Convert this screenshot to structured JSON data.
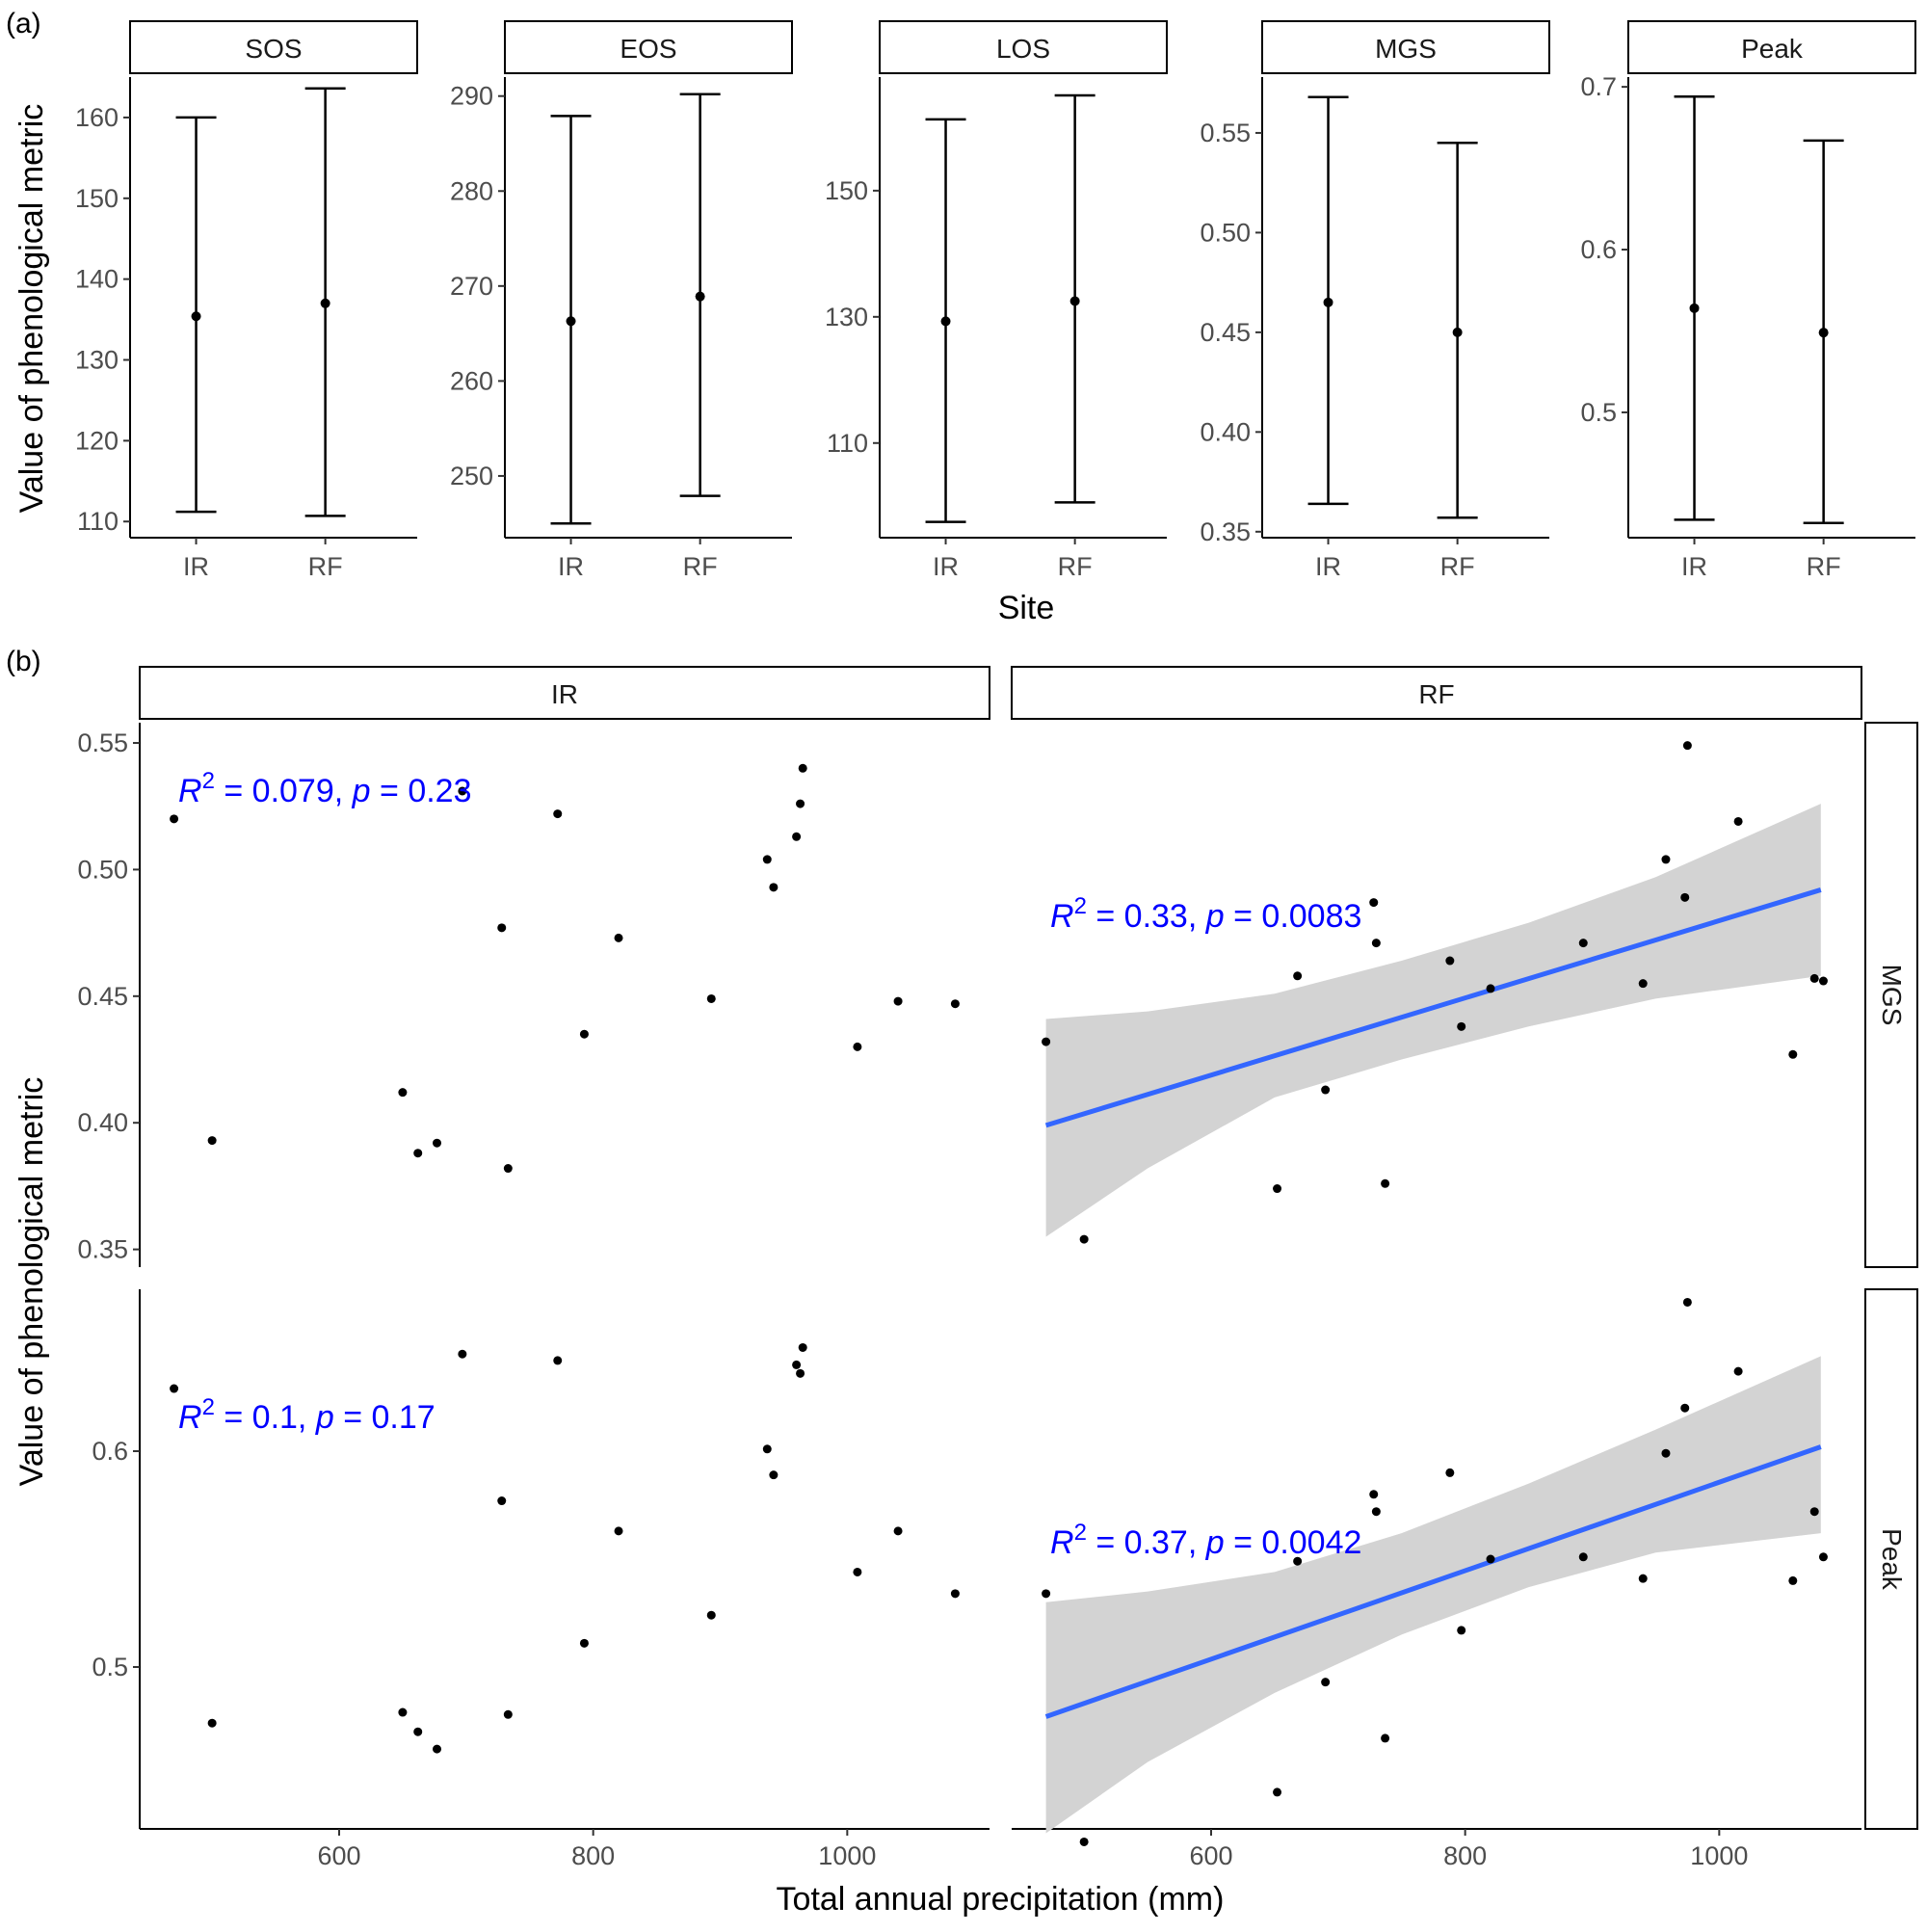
{
  "panel_labels": {
    "a": "(a)",
    "b": "(b)"
  },
  "chart_data": [
    {
      "type": "errorbar",
      "panel": "(a)",
      "ylabel": "Value of phenological metric",
      "xlabel": "Site",
      "categories": [
        "IR",
        "RF"
      ],
      "facets": [
        {
          "title": "SOS",
          "yticks": [
            "110",
            "120",
            "130",
            "140",
            "150",
            "160"
          ],
          "ylim": [
            108,
            165
          ],
          "points": [
            {
              "x": "IR",
              "mean": 135.4,
              "lower": 111.2,
              "upper": 160.0
            },
            {
              "x": "RF",
              "mean": 137.0,
              "lower": 110.7,
              "upper": 163.6
            }
          ]
        },
        {
          "title": "EOS",
          "yticks": [
            "250",
            "260",
            "270",
            "280",
            "290"
          ],
          "ylim": [
            243.5,
            292
          ],
          "points": [
            {
              "x": "IR",
              "mean": 266.3,
              "lower": 245.0,
              "upper": 287.9
            },
            {
              "x": "RF",
              "mean": 268.9,
              "lower": 247.9,
              "upper": 290.2
            }
          ]
        },
        {
          "title": "LOS",
          "yticks": [
            "110",
            "130",
            "150"
          ],
          "ylim": [
            95,
            168
          ],
          "points": [
            {
              "x": "IR",
              "mean": 129.3,
              "lower": 97.5,
              "upper": 161.3
            },
            {
              "x": "RF",
              "mean": 132.5,
              "lower": 100.6,
              "upper": 165.1
            }
          ]
        },
        {
          "title": "MGS",
          "yticks": [
            "0.35",
            "0.40",
            "0.45",
            "0.50",
            "0.55"
          ],
          "ylim": [
            0.347,
            0.578
          ],
          "points": [
            {
              "x": "IR",
              "mean": 0.465,
              "lower": 0.364,
              "upper": 0.568
            },
            {
              "x": "RF",
              "mean": 0.45,
              "lower": 0.357,
              "upper": 0.545
            }
          ]
        },
        {
          "title": "Peak",
          "yticks": [
            "0.5",
            "0.6",
            "0.7"
          ],
          "ylim": [
            0.423,
            0.706
          ],
          "points": [
            {
              "x": "IR",
              "mean": 0.564,
              "lower": 0.434,
              "upper": 0.694
            },
            {
              "x": "RF",
              "mean": 0.549,
              "lower": 0.432,
              "upper": 0.667
            }
          ]
        }
      ]
    },
    {
      "type": "scatter",
      "panel": "(b)",
      "xlabel": "Total annual precipitation (mm)",
      "ylabel": "Value of phenological metric",
      "columns": [
        "IR",
        "RF"
      ],
      "rows": [
        "MGS",
        "Peak"
      ],
      "xticks": [
        "600",
        "800",
        "1000"
      ],
      "xlim": [
        443,
        1112
      ],
      "row_settings": {
        "MGS": {
          "yticks": [
            "0.35",
            "0.40",
            "0.45",
            "0.50",
            "0.55"
          ],
          "ylim": [
            0.343,
            0.558
          ]
        },
        "Peak": {
          "yticks": [
            "0.5",
            "0.6"
          ],
          "ylim": [
            0.425,
            0.675
          ]
        }
      },
      "panels": [
        {
          "column": "IR",
          "row": "MGS",
          "annotation": {
            "r2": "0.079",
            "p": "0.23"
          },
          "points": [
            [
              470,
              0.52
            ],
            [
              500,
              0.393
            ],
            [
              650,
              0.412
            ],
            [
              662,
              0.388
            ],
            [
              677,
              0.392
            ],
            [
              697,
              0.531
            ],
            [
              728,
              0.477
            ],
            [
              733,
              0.382
            ],
            [
              772,
              0.522
            ],
            [
              793,
              0.435
            ],
            [
              820,
              0.473
            ],
            [
              893,
              0.449
            ],
            [
              937,
              0.504
            ],
            [
              942,
              0.493
            ],
            [
              960,
              0.513
            ],
            [
              963,
              0.526
            ],
            [
              965,
              0.54
            ],
            [
              1008,
              0.43
            ],
            [
              1040,
              0.448
            ],
            [
              1085,
              0.447
            ]
          ]
        },
        {
          "column": "RF",
          "row": "MGS",
          "annotation": {
            "r2": "0.33",
            "p": "0.0083"
          },
          "fit": {
            "x": [
              470,
              1080
            ],
            "y": [
              0.399,
              0.492
            ]
          },
          "ci": {
            "x": [
              470,
              550,
              650,
              750,
              850,
              950,
              1080
            ],
            "lower": [
              0.355,
              0.382,
              0.41,
              0.425,
              0.438,
              0.449,
              0.458
            ],
            "upper": [
              0.441,
              0.444,
              0.451,
              0.464,
              0.479,
              0.497,
              0.526
            ]
          },
          "points": [
            [
              470,
              0.432
            ],
            [
              500,
              0.354
            ],
            [
              652,
              0.374
            ],
            [
              668,
              0.458
            ],
            [
              690,
              0.413
            ],
            [
              728,
              0.487
            ],
            [
              730,
              0.471
            ],
            [
              737,
              0.376
            ],
            [
              788,
              0.464
            ],
            [
              797,
              0.438
            ],
            [
              820,
              0.453
            ],
            [
              893,
              0.471
            ],
            [
              940,
              0.455
            ],
            [
              958,
              0.504
            ],
            [
              973,
              0.489
            ],
            [
              975,
              0.549
            ],
            [
              1015,
              0.519
            ],
            [
              1058,
              0.427
            ],
            [
              1075,
              0.457
            ],
            [
              1082,
              0.456
            ]
          ]
        },
        {
          "column": "IR",
          "row": "Peak",
          "annotation": {
            "r2": "0.1",
            "p": "0.17"
          },
          "points": [
            [
              470,
              0.629
            ],
            [
              500,
              0.474
            ],
            [
              650,
              0.479
            ],
            [
              662,
              0.47
            ],
            [
              677,
              0.462
            ],
            [
              697,
              0.645
            ],
            [
              728,
              0.577
            ],
            [
              733,
              0.478
            ],
            [
              772,
              0.642
            ],
            [
              793,
              0.511
            ],
            [
              820,
              0.563
            ],
            [
              893,
              0.524
            ],
            [
              937,
              0.601
            ],
            [
              942,
              0.589
            ],
            [
              960,
              0.64
            ],
            [
              963,
              0.636
            ],
            [
              965,
              0.648
            ],
            [
              1008,
              0.544
            ],
            [
              1040,
              0.563
            ],
            [
              1085,
              0.534
            ]
          ]
        },
        {
          "column": "RF",
          "row": "Peak",
          "annotation": {
            "r2": "0.37",
            "p": "0.0042"
          },
          "fit": {
            "x": [
              470,
              1080
            ],
            "y": [
              0.477,
              0.602
            ]
          },
          "ci": {
            "x": [
              470,
              550,
              650,
              750,
              850,
              950,
              1080
            ],
            "lower": [
              0.423,
              0.456,
              0.488,
              0.515,
              0.537,
              0.553,
              0.562
            ],
            "upper": [
              0.53,
              0.535,
              0.544,
              0.562,
              0.585,
              0.61,
              0.644
            ]
          },
          "points": [
            [
              470,
              0.534
            ],
            [
              500,
              0.419
            ],
            [
              652,
              0.442
            ],
            [
              668,
              0.549
            ],
            [
              690,
              0.493
            ],
            [
              728,
              0.58
            ],
            [
              730,
              0.572
            ],
            [
              737,
              0.467
            ],
            [
              788,
              0.59
            ],
            [
              797,
              0.517
            ],
            [
              820,
              0.55
            ],
            [
              893,
              0.551
            ],
            [
              940,
              0.541
            ],
            [
              958,
              0.599
            ],
            [
              973,
              0.62
            ],
            [
              975,
              0.669
            ],
            [
              1015,
              0.637
            ],
            [
              1058,
              0.54
            ],
            [
              1075,
              0.572
            ],
            [
              1082,
              0.551
            ]
          ]
        }
      ]
    }
  ]
}
